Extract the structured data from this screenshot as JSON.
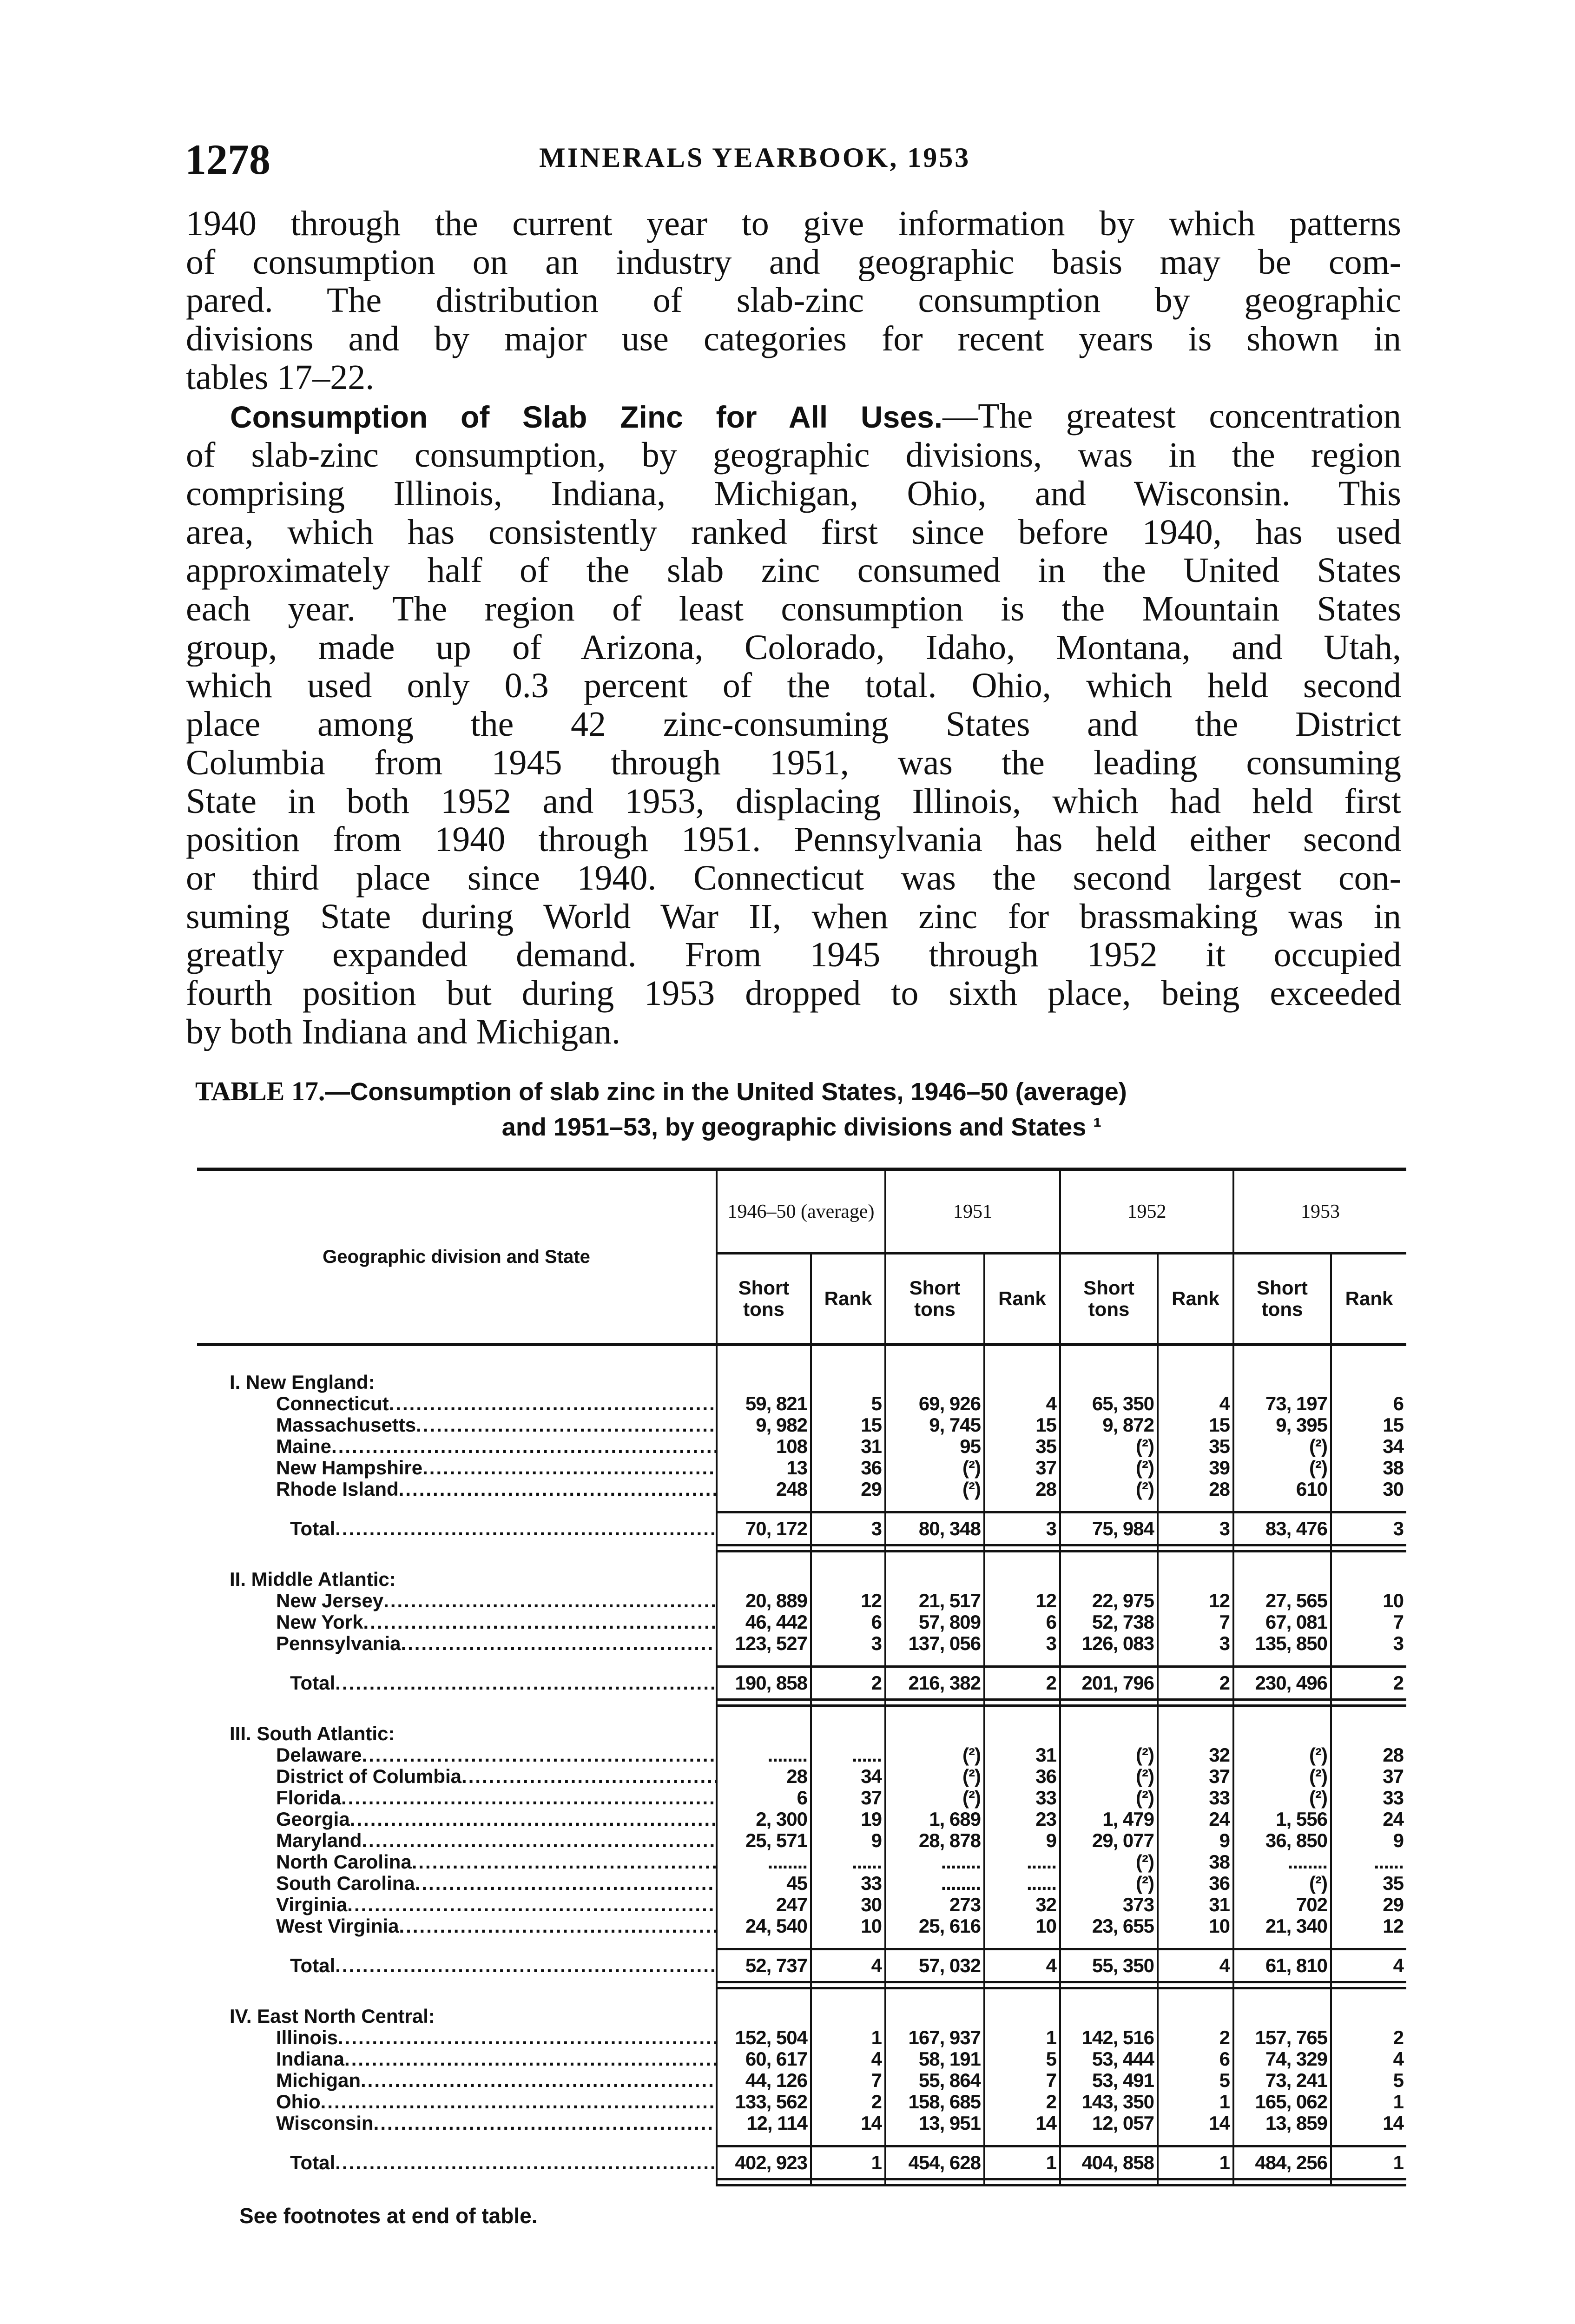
{
  "header": {
    "page_number": "1278",
    "running_title": "MINERALS YEARBOOK, 1953"
  },
  "body": {
    "paragraph1": [
      "1940 through the current year to give information by which patterns",
      "of consumption on an industry and geographic basis may be com-",
      "pared.  The distribution of slab-zinc consumption by geographic",
      "divisions and by major use categories for recent years is shown in",
      "tables 17–22."
    ],
    "paragraph2_lead": "Consumption of Slab Zinc for All Uses.",
    "paragraph2": [
      "—The greatest concentration",
      "of slab-zinc consumption, by geographic divisions, was in the region",
      "comprising Illinois, Indiana, Michigan, Ohio, and Wisconsin.  This",
      "area, which has consistently ranked first since before 1940, has used",
      "approximately half of the slab zinc consumed in the United States",
      "each year.  The region of least consumption is the Mountain States",
      "group, made up of Arizona, Colorado, Idaho, Montana, and Utah,",
      "which used only 0.3 percent of the total.  Ohio, which held second",
      "place among the 42 zinc-consuming States and the District",
      "Columbia from 1945 through 1951, was the leading consuming",
      "State in both 1952 and 1953, displacing Illinois, which had held first",
      "position from 1940 through 1951.  Pennsylvania has held either second",
      "or third place since 1940.  Connecticut was the second largest con-",
      "suming State during World War II, when zinc for brassmaking was in",
      "greatly expanded demand.  From 1945 through 1952 it occupied",
      "fourth position but during 1953 dropped to sixth place, being exceeded",
      "by both Indiana and Michigan."
    ]
  },
  "table": {
    "caption_label": "TABLE 17.",
    "caption_line1": "—Consumption of slab zinc in the United States, 1946–50 (average)",
    "caption_line2": "and 1951–53, by geographic divisions and States ¹",
    "stub_header": "Geographic division and State",
    "years": [
      "1946–50 (average)",
      "1951",
      "1952",
      "1953"
    ],
    "sub_headers": {
      "tons": "Short tons",
      "rank": "Rank"
    },
    "groups": [
      {
        "name": "I. New England:",
        "rows": [
          [
            "Connecticut",
            "59, 821",
            "5",
            "69, 926",
            "4",
            "65, 350",
            "4",
            "73, 197",
            "6"
          ],
          [
            "Massachusetts",
            "9, 982",
            "15",
            "9, 745",
            "15",
            "9, 872",
            "15",
            "9, 395",
            "15"
          ],
          [
            "Maine",
            "108",
            "31",
            "95",
            "35",
            "(²)",
            "35",
            "(²)",
            "34"
          ],
          [
            "New Hampshire",
            "13",
            "36",
            "(²)",
            "37",
            "(²)",
            "39",
            "(²)",
            "38"
          ],
          [
            "Rhode Island",
            "248",
            "29",
            "(²)",
            "28",
            "(²)",
            "28",
            "610",
            "30"
          ]
        ],
        "total": [
          "Total",
          "70, 172",
          "3",
          "80, 348",
          "3",
          "75, 984",
          "3",
          "83, 476",
          "3"
        ]
      },
      {
        "name": "II. Middle Atlantic:",
        "rows": [
          [
            "New Jersey",
            "20, 889",
            "12",
            "21, 517",
            "12",
            "22, 975",
            "12",
            "27, 565",
            "10"
          ],
          [
            "New York",
            "46, 442",
            "6",
            "57, 809",
            "6",
            "52, 738",
            "7",
            "67, 081",
            "7"
          ],
          [
            "Pennsylvania",
            "123, 527",
            "3",
            "137, 056",
            "3",
            "126, 083",
            "3",
            "135, 850",
            "3"
          ]
        ],
        "total": [
          "Total",
          "190, 858",
          "2",
          "216, 382",
          "2",
          "201, 796",
          "2",
          "230, 496",
          "2"
        ]
      },
      {
        "name": "III. South Atlantic:",
        "rows": [
          [
            "Delaware",
            "........",
            "......",
            "(²)",
            "31",
            "(²)",
            "32",
            "(²)",
            "28"
          ],
          [
            "District of Columbia",
            "28",
            "34",
            "(²)",
            "36",
            "(²)",
            "37",
            "(²)",
            "37"
          ],
          [
            "Florida",
            "6",
            "37",
            "(²)",
            "33",
            "(²)",
            "33",
            "(²)",
            "33"
          ],
          [
            "Georgia",
            "2, 300",
            "19",
            "1, 689",
            "23",
            "1, 479",
            "24",
            "1, 556",
            "24"
          ],
          [
            "Maryland",
            "25, 571",
            "9",
            "28, 878",
            "9",
            "29, 077",
            "9",
            "36, 850",
            "9"
          ],
          [
            "North Carolina",
            "........",
            "......",
            "........",
            "......",
            "(²)",
            "38",
            "........",
            "......"
          ],
          [
            "South Carolina",
            "45",
            "33",
            "........",
            "......",
            "(²)",
            "36",
            "(²)",
            "35"
          ],
          [
            "Virginia",
            "247",
            "30",
            "273",
            "32",
            "373",
            "31",
            "702",
            "29"
          ],
          [
            "West Virginia",
            "24, 540",
            "10",
            "25, 616",
            "10",
            "23, 655",
            "10",
            "21, 340",
            "12"
          ]
        ],
        "total": [
          "Total",
          "52, 737",
          "4",
          "57, 032",
          "4",
          "55, 350",
          "4",
          "61, 810",
          "4"
        ]
      },
      {
        "name": "IV. East North Central:",
        "rows": [
          [
            "Illinois",
            "152, 504",
            "1",
            "167, 937",
            "1",
            "142, 516",
            "2",
            "157, 765",
            "2"
          ],
          [
            "Indiana",
            "60, 617",
            "4",
            "58, 191",
            "5",
            "53, 444",
            "6",
            "74, 329",
            "4"
          ],
          [
            "Michigan",
            "44, 126",
            "7",
            "55, 864",
            "7",
            "53, 491",
            "5",
            "73, 241",
            "5"
          ],
          [
            "Ohio",
            "133, 562",
            "2",
            "158, 685",
            "2",
            "143, 350",
            "1",
            "165, 062",
            "1"
          ],
          [
            "Wisconsin",
            "12, 114",
            "14",
            "13, 951",
            "14",
            "12, 057",
            "14",
            "13, 859",
            "14"
          ]
        ],
        "total": [
          "Total",
          "402, 923",
          "1",
          "454, 628",
          "1",
          "404, 858",
          "1",
          "484, 256",
          "1"
        ]
      }
    ],
    "footnote_ref": "See footnotes at end of table."
  }
}
